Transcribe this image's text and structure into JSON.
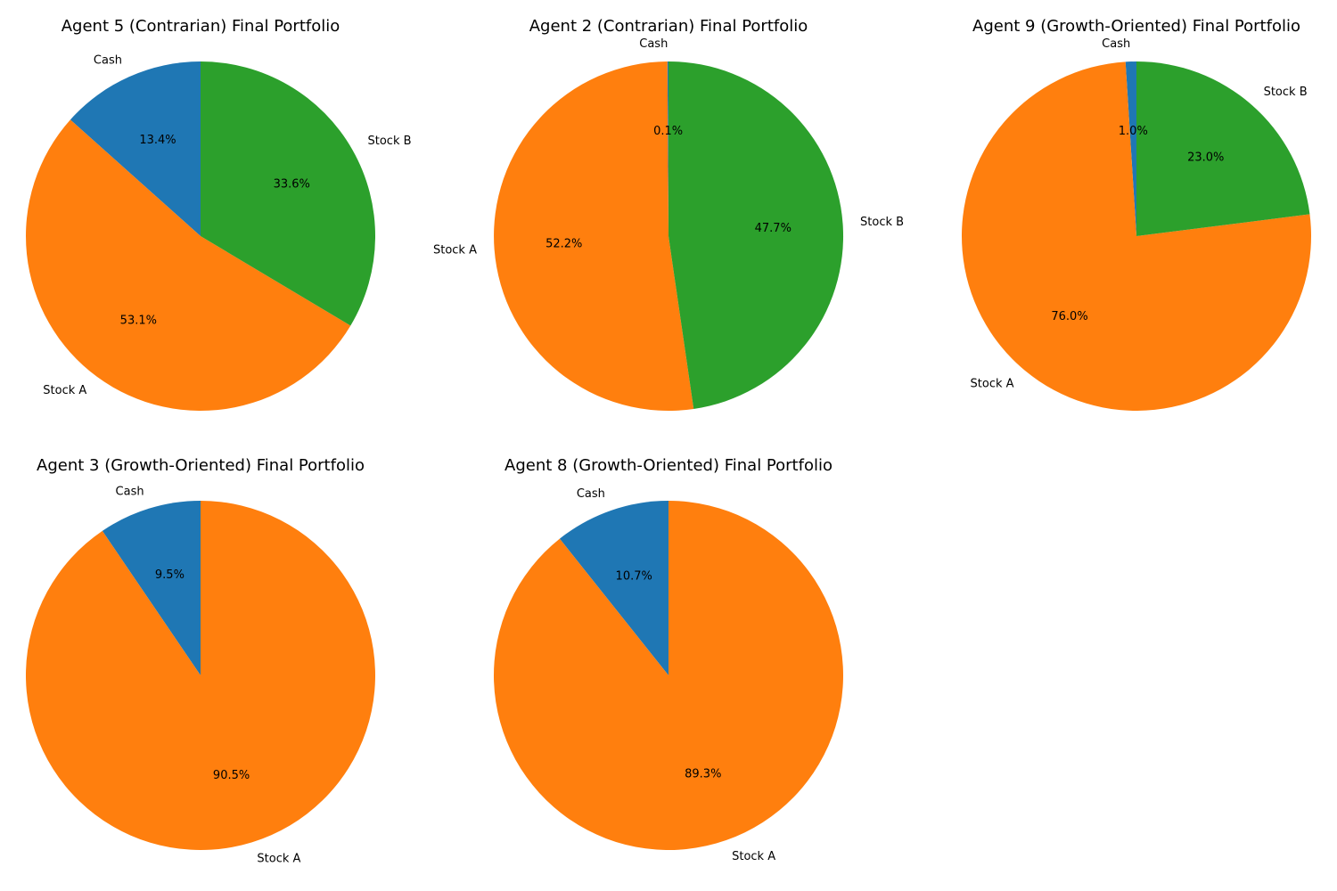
{
  "colors": {
    "Cash": "#1f77b4",
    "Stock A": "#ff7f0e",
    "Stock B": "#2ca02c"
  },
  "chart_data": [
    {
      "type": "pie",
      "title": "Agent 5 (Contrarian) Final Portfolio",
      "labels": [
        "Cash",
        "Stock A",
        "Stock B"
      ],
      "values": [
        13.4,
        53.1,
        33.6
      ],
      "value_labels": [
        "13.4%",
        "53.1%",
        "33.6%"
      ]
    },
    {
      "type": "pie",
      "title": "Agent 2 (Contrarian) Final Portfolio",
      "labels": [
        "Cash",
        "Stock A",
        "Stock B"
      ],
      "values": [
        0.1,
        52.2,
        47.7
      ],
      "value_labels": [
        "0.1%",
        "52.2%",
        "47.7%"
      ]
    },
    {
      "type": "pie",
      "title": "Agent 9 (Growth-Oriented) Final Portfolio",
      "labels": [
        "Cash",
        "Stock A",
        "Stock B"
      ],
      "values": [
        1.0,
        76.0,
        23.0
      ],
      "value_labels": [
        "1.0%",
        "76.0%",
        "23.0%"
      ]
    },
    {
      "type": "pie",
      "title": "Agent 3 (Growth-Oriented) Final Portfolio",
      "labels": [
        "Cash",
        "Stock A"
      ],
      "values": [
        9.5,
        90.5
      ],
      "value_labels": [
        "9.5%",
        "90.5%"
      ]
    },
    {
      "type": "pie",
      "title": "Agent 8 (Growth-Oriented) Final Portfolio",
      "labels": [
        "Cash",
        "Stock A"
      ],
      "values": [
        10.7,
        89.3
      ],
      "value_labels": [
        "10.7%",
        "89.3%"
      ]
    }
  ]
}
